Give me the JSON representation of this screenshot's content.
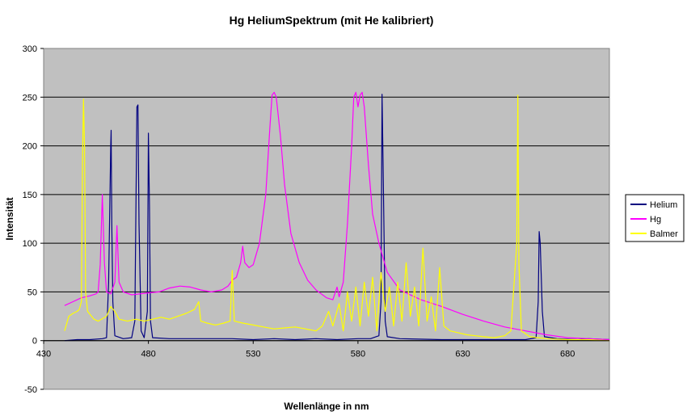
{
  "chart_data": {
    "type": "line",
    "title": "Hg HeliumSpektrum (mit He kalibriert)",
    "xlabel": "Wellenlänge in nm",
    "ylabel": "Intensität",
    "xlim": [
      430,
      700
    ],
    "ylim": [
      -50,
      300
    ],
    "x_ticks": [
      430,
      480,
      530,
      580,
      630,
      680
    ],
    "y_ticks": [
      -50,
      0,
      50,
      100,
      150,
      200,
      250,
      300
    ],
    "grid": "horizontal",
    "plot_background": "#c0c0c0",
    "legend_position": "right",
    "series": [
      {
        "name": "Helium",
        "color": "#000080",
        "points": [
          [
            440,
            0
          ],
          [
            446,
            1
          ],
          [
            452,
            1
          ],
          [
            458,
            2
          ],
          [
            460,
            3
          ],
          [
            461,
            60
          ],
          [
            462,
            200
          ],
          [
            462.2,
            216
          ],
          [
            462.5,
            120
          ],
          [
            463,
            40
          ],
          [
            464,
            5
          ],
          [
            468,
            2
          ],
          [
            472,
            3
          ],
          [
            473.5,
            20
          ],
          [
            474.5,
            240
          ],
          [
            475,
            242
          ],
          [
            475.5,
            120
          ],
          [
            476.5,
            10
          ],
          [
            478,
            3
          ],
          [
            479.5,
            30
          ],
          [
            480,
            213
          ],
          [
            480.5,
            140
          ],
          [
            481,
            20
          ],
          [
            482,
            3
          ],
          [
            490,
            2
          ],
          [
            500,
            2
          ],
          [
            510,
            2
          ],
          [
            520,
            2
          ],
          [
            530,
            1
          ],
          [
            540,
            2
          ],
          [
            550,
            1
          ],
          [
            560,
            2
          ],
          [
            570,
            1
          ],
          [
            580,
            2
          ],
          [
            586,
            2
          ],
          [
            590,
            5
          ],
          [
            591,
            40
          ],
          [
            591.5,
            253
          ],
          [
            592,
            180
          ],
          [
            593,
            20
          ],
          [
            594,
            4
          ],
          [
            600,
            2
          ],
          [
            620,
            1
          ],
          [
            640,
            1
          ],
          [
            660,
            1
          ],
          [
            665,
            3
          ],
          [
            666,
            40
          ],
          [
            666.5,
            112
          ],
          [
            667,
            100
          ],
          [
            668,
            30
          ],
          [
            669,
            4
          ],
          [
            675,
            2
          ],
          [
            685,
            1
          ],
          [
            690,
            2
          ],
          [
            700,
            1
          ]
        ]
      },
      {
        "name": "Hg",
        "color": "#ff00ff",
        "points": [
          [
            440,
            36
          ],
          [
            444,
            40
          ],
          [
            448,
            44
          ],
          [
            452,
            46
          ],
          [
            455,
            48
          ],
          [
            456,
            50
          ],
          [
            457,
            78
          ],
          [
            458,
            150
          ],
          [
            459,
            80
          ],
          [
            460,
            50
          ],
          [
            462,
            48
          ],
          [
            464,
            60
          ],
          [
            465,
            118
          ],
          [
            466,
            60
          ],
          [
            468,
            50
          ],
          [
            472,
            47
          ],
          [
            476,
            48
          ],
          [
            480,
            49
          ],
          [
            485,
            50
          ],
          [
            490,
            54
          ],
          [
            495,
            56
          ],
          [
            500,
            55
          ],
          [
            505,
            52
          ],
          [
            510,
            50
          ],
          [
            515,
            52
          ],
          [
            518,
            56
          ],
          [
            520,
            62
          ],
          [
            522,
            65
          ],
          [
            524,
            80
          ],
          [
            525,
            97
          ],
          [
            526,
            80
          ],
          [
            528,
            75
          ],
          [
            530,
            78
          ],
          [
            533,
            100
          ],
          [
            536,
            150
          ],
          [
            538,
            220
          ],
          [
            539,
            252
          ],
          [
            540,
            255
          ],
          [
            541,
            250
          ],
          [
            543,
            210
          ],
          [
            545,
            160
          ],
          [
            548,
            110
          ],
          [
            552,
            80
          ],
          [
            556,
            62
          ],
          [
            560,
            52
          ],
          [
            565,
            44
          ],
          [
            568,
            42
          ],
          [
            570,
            55
          ],
          [
            571,
            45
          ],
          [
            573,
            60
          ],
          [
            575,
            120
          ],
          [
            577,
            200
          ],
          [
            578,
            250
          ],
          [
            579,
            255
          ],
          [
            580,
            240
          ],
          [
            581,
            252
          ],
          [
            582,
            255
          ],
          [
            583,
            240
          ],
          [
            585,
            180
          ],
          [
            587,
            130
          ],
          [
            590,
            100
          ],
          [
            594,
            70
          ],
          [
            600,
            52
          ],
          [
            610,
            42
          ],
          [
            620,
            35
          ],
          [
            630,
            27
          ],
          [
            640,
            20
          ],
          [
            650,
            14
          ],
          [
            660,
            10
          ],
          [
            670,
            6
          ],
          [
            680,
            3
          ],
          [
            690,
            2
          ],
          [
            700,
            1
          ]
        ]
      },
      {
        "name": "Balmer",
        "color": "#ffff00",
        "points": [
          [
            440,
            10
          ],
          [
            442,
            25
          ],
          [
            444,
            28
          ],
          [
            446,
            30
          ],
          [
            447,
            32
          ],
          [
            448,
            40
          ],
          [
            448.5,
            180
          ],
          [
            449,
            248
          ],
          [
            449.5,
            200
          ],
          [
            450,
            50
          ],
          [
            451,
            30
          ],
          [
            454,
            22
          ],
          [
            456,
            20
          ],
          [
            460,
            25
          ],
          [
            462,
            35
          ],
          [
            464,
            30
          ],
          [
            466,
            22
          ],
          [
            470,
            20
          ],
          [
            474,
            22
          ],
          [
            478,
            20
          ],
          [
            482,
            22
          ],
          [
            486,
            24
          ],
          [
            490,
            22
          ],
          [
            494,
            25
          ],
          [
            498,
            28
          ],
          [
            502,
            32
          ],
          [
            504,
            40
          ],
          [
            505,
            20
          ],
          [
            508,
            18
          ],
          [
            512,
            16
          ],
          [
            516,
            18
          ],
          [
            519,
            20
          ],
          [
            520,
            72
          ],
          [
            521,
            20
          ],
          [
            525,
            18
          ],
          [
            530,
            16
          ],
          [
            535,
            14
          ],
          [
            540,
            12
          ],
          [
            545,
            13
          ],
          [
            550,
            14
          ],
          [
            555,
            12
          ],
          [
            560,
            10
          ],
          [
            563,
            15
          ],
          [
            566,
            30
          ],
          [
            568,
            15
          ],
          [
            571,
            38
          ],
          [
            573,
            10
          ],
          [
            575,
            50
          ],
          [
            577,
            20
          ],
          [
            579,
            55
          ],
          [
            581,
            15
          ],
          [
            583,
            60
          ],
          [
            585,
            25
          ],
          [
            587,
            65
          ],
          [
            589,
            10
          ],
          [
            591,
            70
          ],
          [
            593,
            30
          ],
          [
            595,
            55
          ],
          [
            597,
            15
          ],
          [
            599,
            60
          ],
          [
            601,
            20
          ],
          [
            603,
            80
          ],
          [
            605,
            25
          ],
          [
            607,
            55
          ],
          [
            609,
            15
          ],
          [
            611,
            95
          ],
          [
            613,
            20
          ],
          [
            615,
            45
          ],
          [
            617,
            10
          ],
          [
            619,
            75
          ],
          [
            621,
            15
          ],
          [
            624,
            10
          ],
          [
            628,
            8
          ],
          [
            632,
            6
          ],
          [
            636,
            5
          ],
          [
            640,
            4
          ],
          [
            645,
            3
          ],
          [
            650,
            5
          ],
          [
            653,
            10
          ],
          [
            655.8,
            100
          ],
          [
            656.3,
            252
          ],
          [
            656.8,
            80
          ],
          [
            658,
            10
          ],
          [
            662,
            4
          ],
          [
            670,
            2
          ],
          [
            680,
            1
          ],
          [
            690,
            1
          ],
          [
            700,
            0
          ]
        ]
      }
    ]
  }
}
